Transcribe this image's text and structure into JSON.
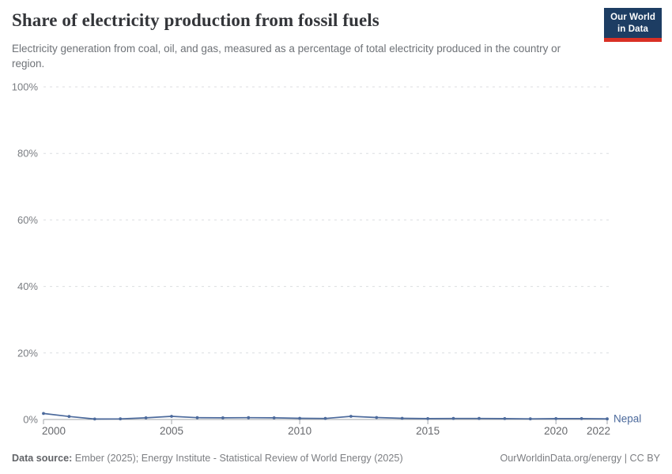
{
  "header": {
    "title": "Share of electricity production from fossil fuels",
    "subtitle": "Electricity generation from coal, oil, and gas, measured as a percentage of total electricity produced in the country or region.",
    "logo": {
      "line1": "Our World",
      "line2": "in Data",
      "bg_color": "#1d3d63",
      "accent_color": "#d93025"
    }
  },
  "chart_data": {
    "type": "line",
    "title": "Share of electricity production from fossil fuels",
    "xlabel": "",
    "ylabel": "",
    "x": [
      2000,
      2001,
      2002,
      2003,
      2004,
      2005,
      2006,
      2007,
      2008,
      2009,
      2010,
      2011,
      2012,
      2013,
      2014,
      2015,
      2016,
      2017,
      2018,
      2019,
      2020,
      2021,
      2022
    ],
    "series": [
      {
        "name": "Nepal",
        "color": "#4c6a9c",
        "values": [
          1.8,
          0.9,
          0.15,
          0.2,
          0.5,
          0.95,
          0.55,
          0.5,
          0.55,
          0.5,
          0.35,
          0.3,
          0.95,
          0.6,
          0.35,
          0.25,
          0.3,
          0.3,
          0.25,
          0.2,
          0.25,
          0.25,
          0.2
        ]
      }
    ],
    "ylim": [
      0,
      100
    ],
    "y_ticks": [
      0,
      20,
      40,
      60,
      80,
      100
    ],
    "y_tick_suffix": "%",
    "x_ticks": [
      2000,
      2005,
      2010,
      2015,
      2020,
      2022
    ],
    "grid": "horizontal-dashed",
    "legend": "end-of-line-label",
    "colors": {
      "gridline": "#dcdee1",
      "axis_line": "#a1a5aa",
      "y_tick_label": "#7b7e83",
      "x_tick_label": "#67696d"
    }
  },
  "footer": {
    "source_label": "Data source:",
    "source_text": "Ember (2025); Energy Institute - Statistical Review of World Energy (2025)",
    "credit": "OurWorldinData.org/energy | CC BY"
  }
}
